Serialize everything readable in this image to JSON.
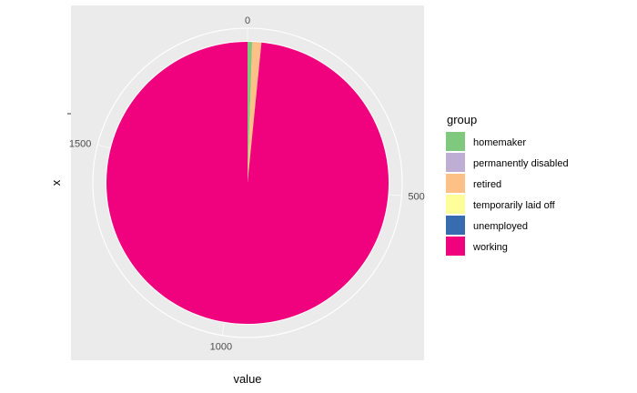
{
  "chart_data": {
    "type": "pie",
    "xlabel": "value",
    "ylabel": "x",
    "theta_ticks": [
      0,
      500,
      1000,
      1500
    ],
    "legend": {
      "title": "group",
      "position": "right"
    },
    "series": [
      {
        "name": "homemaker",
        "value": 10,
        "color": "#7fc97f"
      },
      {
        "name": "permanently disabled",
        "value": 0,
        "color": "#beaed4"
      },
      {
        "name": "retired",
        "value": 20,
        "color": "#fdc086"
      },
      {
        "name": "temporarily laid off",
        "value": 0,
        "color": "#ffff99"
      },
      {
        "name": "unemployed",
        "value": 0,
        "color": "#386cb0"
      },
      {
        "name": "working",
        "value": 1870,
        "color": "#f0027f"
      }
    ],
    "panel_background": "#ebebeb",
    "grid": true
  }
}
